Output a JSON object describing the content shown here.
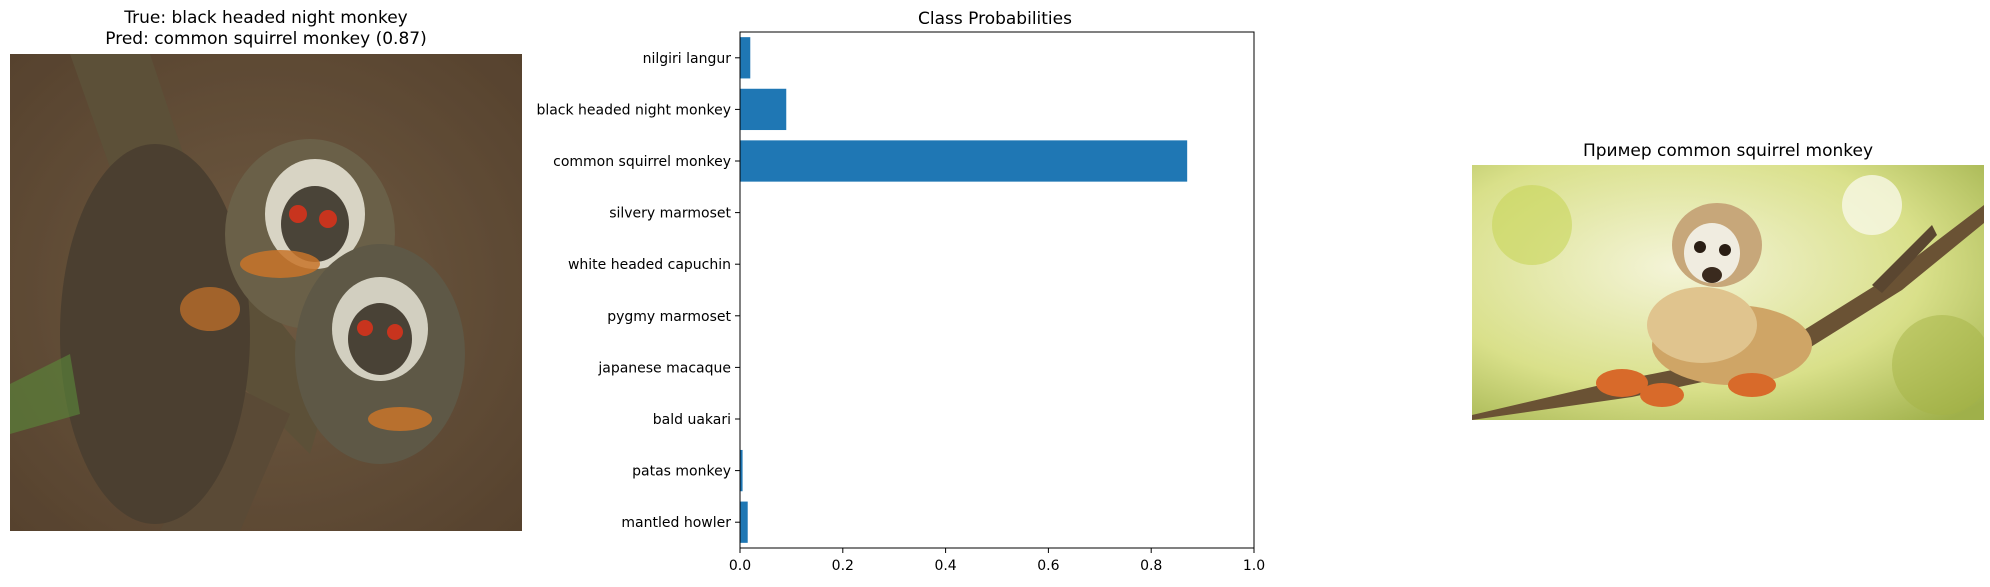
{
  "left_panel": {
    "title_line1": "True: black headed night monkey",
    "title_line2": "Pred: common squirrel monkey (0.87)"
  },
  "right_panel": {
    "title": "Пример common squirrel monkey"
  },
  "chart_data": {
    "type": "bar",
    "orientation": "horizontal",
    "title": "Class Probabilities",
    "xlabel": "",
    "ylabel": "",
    "categories": [
      "nilgiri langur",
      "black headed night monkey",
      "common squirrel monkey",
      "silvery marmoset",
      "white headed capuchin",
      "pygmy marmoset",
      "japanese macaque",
      "bald uakari",
      "patas monkey",
      "mantled howler"
    ],
    "values": [
      0.02,
      0.09,
      0.87,
      0.0,
      0.0,
      0.0,
      0.0,
      0.0,
      0.005,
      0.015
    ],
    "xlim": [
      0,
      1.0
    ],
    "xticks": [
      "0.0",
      "0.2",
      "0.4",
      "0.6",
      "0.8",
      "1.0"
    ],
    "grid": false,
    "color": "#1f77b4"
  },
  "colors": {
    "bar": "#1f77b4",
    "axis": "#000000"
  }
}
